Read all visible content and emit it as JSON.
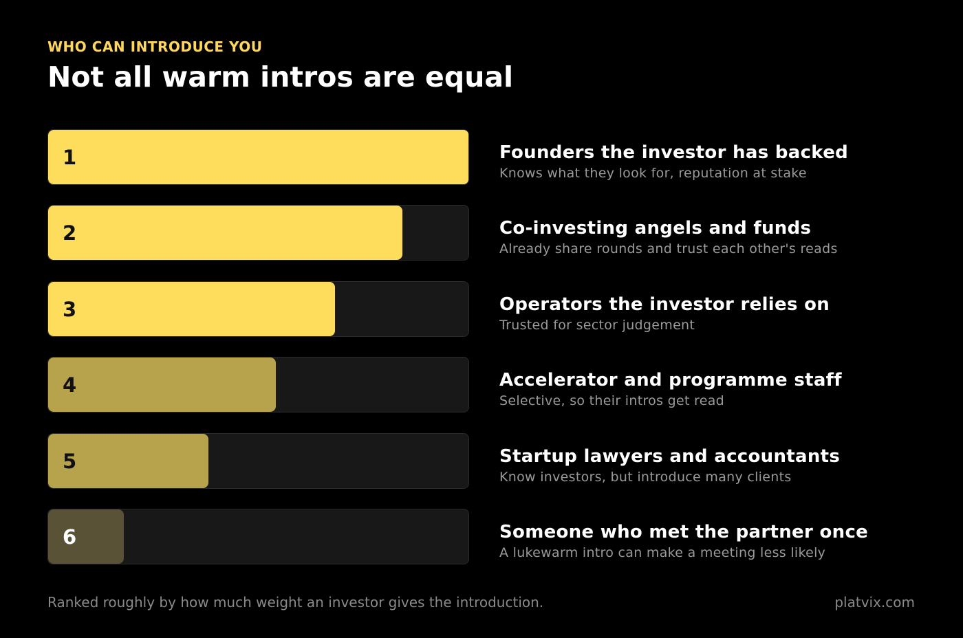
{
  "chart_data": {
    "type": "ranked-bar",
    "eyebrow": "WHO CAN INTRODUCE YOU",
    "title": "Not all warm intros are equal",
    "xlim": [
      0,
      100
    ],
    "items": [
      {
        "rank": 1,
        "value": 100,
        "color": "#ffdd5c",
        "label": "Founders the investor has backed",
        "note": "Knows what they look for, reputation at stake"
      },
      {
        "rank": 2,
        "value": 84,
        "color": "#ffdd5c",
        "label": "Co-investing angels and funds",
        "note": "Already share rounds and trust each other's reads"
      },
      {
        "rank": 3,
        "value": 68,
        "color": "#ffdd5c",
        "label": "Operators the investor relies on",
        "note": "Trusted for sector judgement"
      },
      {
        "rank": 4,
        "value": 54,
        "color": "#b8a34d",
        "label": "Accelerator and programme staff",
        "note": "Selective, so their intros get read"
      },
      {
        "rank": 5,
        "value": 38,
        "color": "#b8a34d",
        "label": "Startup lawyers and accountants",
        "note": "Know investors, but introduce many clients"
      },
      {
        "rank": 6,
        "value": 18,
        "color": "#5a5236",
        "label": "Someone who met the partner once",
        "note": "A lukewarm intro can make a meeting less likely"
      }
    ],
    "footnote": "Ranked roughly by how much weight an investor gives the introduction.",
    "source": "platvix.com"
  }
}
